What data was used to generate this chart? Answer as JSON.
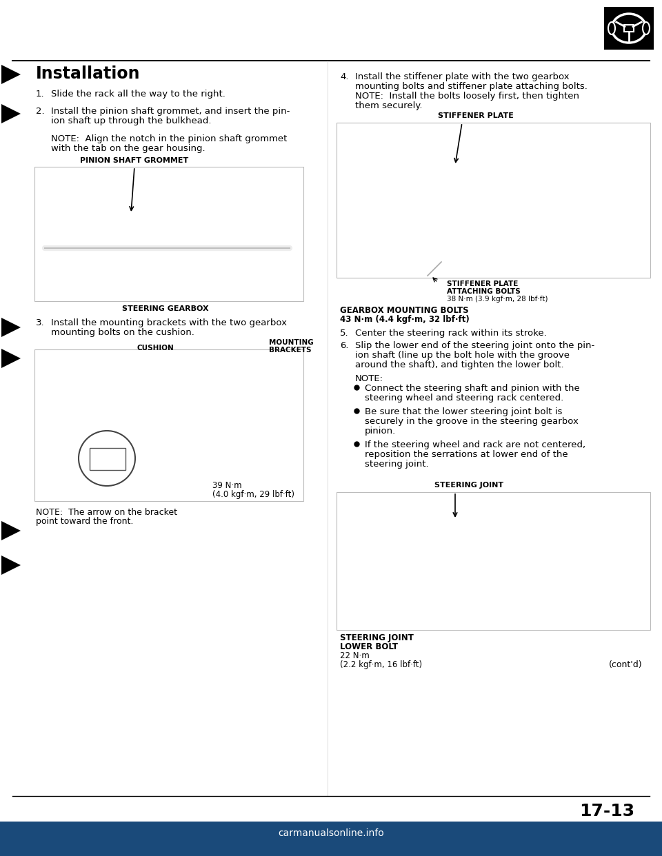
{
  "page_width": 9.6,
  "page_height": 12.42,
  "dpi": 100,
  "bg_color": "#ffffff",
  "title": "Installation",
  "page_number": "17-13",
  "footer": "carmanualsonline.info",
  "left": {
    "step1": "Slide the rack all the way to the right.",
    "step2_l1": "Install the pinion shaft grommet, and insert the pin-",
    "step2_l2": "ion shaft up through the bulkhead.",
    "note2_l1": "NOTE:  Align the notch in the pinion shaft grommet",
    "note2_l2": "with the tab on the gear housing.",
    "label_grommet": "PINION SHAFT GROMMET",
    "label_gearbox": "STEERING GEARBOX",
    "step3_l1": "Install the mounting brackets with the two gearbox",
    "step3_l2": "mounting bolts on the cushion.",
    "label_mounting": "MOUNTING\nBRACKETS",
    "label_cushion": "CUSHION",
    "torque1_l1": "39 N·m",
    "torque1_l2": "(4.0 kgf·m, 29 lbf·ft)",
    "note3_l1": "NOTE:  The arrow on the bracket",
    "note3_l2": "point toward the front."
  },
  "right": {
    "step4_l1": "Install the stiffener plate with the two gearbox",
    "step4_l2": "mounting bolts and stiffener plate attaching bolts.",
    "step4_l3": "NOTE:  Install the bolts loosely first, then tighten",
    "step4_l4": "them securely.",
    "label_stiffener": "STIFFENER PLATE",
    "label_sp_atb_l1": "STIFFENER PLATE",
    "label_sp_atb_l2": "ATTACHING BOLTS",
    "label_sp_atb_l3": "38 N·m (3.9 kgf·m, 28 lbf·ft)",
    "label_gmb_l1": "GEARBOX MOUNTING BOLTS",
    "label_gmb_l2": "43 N·m (4.4 kgf·m, 32 lbf·ft)",
    "step5": "Center the steering rack within its stroke.",
    "step6_l1": "Slip the lower end of the steering joint onto the pin-",
    "step6_l2": "ion shaft (line up the bolt hole with the groove",
    "step6_l3": "around the shaft), and tighten the lower bolt.",
    "note6": "NOTE:",
    "bullet1_l1": "Connect the steering shaft and pinion with the",
    "bullet1_l2": "steering wheel and steering rack centered.",
    "bullet2_l1": "Be sure that the lower steering joint bolt is",
    "bullet2_l2": "securely in the groove in the steering gearbox",
    "bullet2_l3": "pinion.",
    "bullet3_l1": "If the steering wheel and rack are not centered,",
    "bullet3_l2": "reposition the serrations at lower end of the",
    "bullet3_l3": "steering joint.",
    "label_sj": "STEERING JOINT",
    "label_sjlb_l1": "STEERING JOINT",
    "label_sjlb_l2": "LOWER BOLT",
    "label_sjlb_l3": "22 N·m",
    "label_sjlb_l4": "(2.2 kgf·m, 16 lbf·ft)",
    "contd": "(cont'd)"
  }
}
